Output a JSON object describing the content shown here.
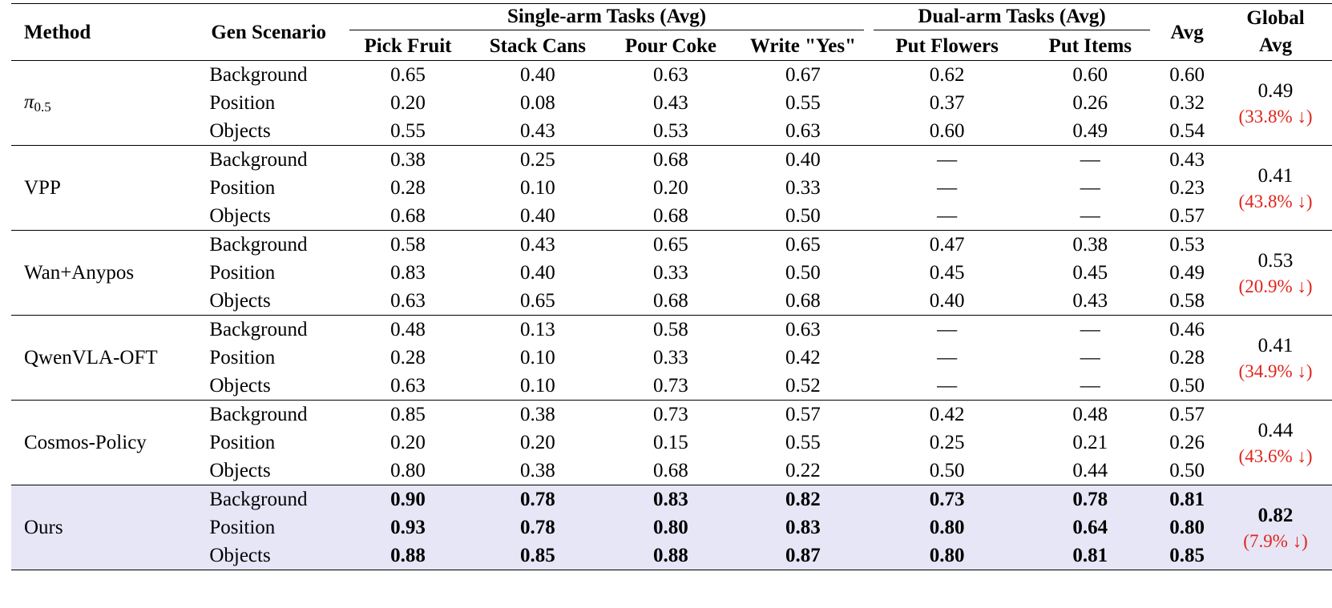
{
  "header": {
    "method": "Method",
    "gen_scenario": "Gen Scenario",
    "single_group": "Single-arm Tasks (Avg)",
    "dual_group": "Dual-arm Tasks (Avg)",
    "avg": "Avg",
    "global_avg_line1": "Global",
    "global_avg_line2": "Avg",
    "tasks": [
      "Pick Fruit",
      "Stack Cans",
      "Pour Coke",
      "Write \"Yes\"",
      "Put Flowers",
      "Put Items"
    ]
  },
  "methods": [
    {
      "name": "π",
      "name_sub": "0.5",
      "global_avg": "0.49",
      "global_drop": "(33.8% ↓)",
      "rows": [
        {
          "scenario": "Background",
          "values": [
            "0.65",
            "0.40",
            "0.63",
            "0.67",
            "0.62",
            "0.60"
          ],
          "avg": "0.60"
        },
        {
          "scenario": "Position",
          "values": [
            "0.20",
            "0.08",
            "0.43",
            "0.55",
            "0.37",
            "0.26"
          ],
          "avg": "0.32"
        },
        {
          "scenario": "Objects",
          "values": [
            "0.55",
            "0.43",
            "0.53",
            "0.63",
            "0.60",
            "0.49"
          ],
          "avg": "0.54"
        }
      ]
    },
    {
      "name": "VPP",
      "name_sub": "",
      "global_avg": "0.41",
      "global_drop": "(43.8% ↓)",
      "rows": [
        {
          "scenario": "Background",
          "values": [
            "0.38",
            "0.25",
            "0.68",
            "0.40",
            "—",
            "—"
          ],
          "avg": "0.43"
        },
        {
          "scenario": "Position",
          "values": [
            "0.28",
            "0.10",
            "0.20",
            "0.33",
            "—",
            "—"
          ],
          "avg": "0.23"
        },
        {
          "scenario": "Objects",
          "values": [
            "0.68",
            "0.40",
            "0.68",
            "0.50",
            "—",
            "—"
          ],
          "avg": "0.57"
        }
      ]
    },
    {
      "name": "Wan+Anypos",
      "name_sub": "",
      "global_avg": "0.53",
      "global_drop": "(20.9% ↓)",
      "rows": [
        {
          "scenario": "Background",
          "values": [
            "0.58",
            "0.43",
            "0.65",
            "0.65",
            "0.47",
            "0.38"
          ],
          "avg": "0.53"
        },
        {
          "scenario": "Position",
          "values": [
            "0.83",
            "0.40",
            "0.33",
            "0.50",
            "0.45",
            "0.45"
          ],
          "avg": "0.49"
        },
        {
          "scenario": "Objects",
          "values": [
            "0.63",
            "0.65",
            "0.68",
            "0.68",
            "0.40",
            "0.43"
          ],
          "avg": "0.58"
        }
      ]
    },
    {
      "name": "QwenVLA-OFT",
      "name_sub": "",
      "global_avg": "0.41",
      "global_drop": "(34.9% ↓)",
      "rows": [
        {
          "scenario": "Background",
          "values": [
            "0.48",
            "0.13",
            "0.58",
            "0.63",
            "—",
            "—"
          ],
          "avg": "0.46"
        },
        {
          "scenario": "Position",
          "values": [
            "0.28",
            "0.10",
            "0.33",
            "0.42",
            "—",
            "—"
          ],
          "avg": "0.28"
        },
        {
          "scenario": "Objects",
          "values": [
            "0.63",
            "0.10",
            "0.73",
            "0.52",
            "—",
            "—"
          ],
          "avg": "0.50"
        }
      ]
    },
    {
      "name": "Cosmos-Policy",
      "name_sub": "",
      "global_avg": "0.44",
      "global_drop": "(43.6% ↓)",
      "rows": [
        {
          "scenario": "Background",
          "values": [
            "0.85",
            "0.38",
            "0.73",
            "0.57",
            "0.42",
            "0.48"
          ],
          "avg": "0.57"
        },
        {
          "scenario": "Position",
          "values": [
            "0.20",
            "0.20",
            "0.15",
            "0.55",
            "0.25",
            "0.21"
          ],
          "avg": "0.26"
        },
        {
          "scenario": "Objects",
          "values": [
            "0.80",
            "0.38",
            "0.68",
            "0.22",
            "0.50",
            "0.44"
          ],
          "avg": "0.50"
        }
      ]
    },
    {
      "name": "Ours",
      "name_sub": "",
      "highlight": true,
      "global_avg": "0.82",
      "global_drop": "(7.9% ↓)",
      "rows": [
        {
          "scenario": "Background",
          "values": [
            "0.90",
            "0.78",
            "0.83",
            "0.82",
            "0.73",
            "0.78"
          ],
          "avg": "0.81"
        },
        {
          "scenario": "Position",
          "values": [
            "0.93",
            "0.78",
            "0.80",
            "0.83",
            "0.80",
            "0.64"
          ],
          "avg": "0.80"
        },
        {
          "scenario": "Objects",
          "values": [
            "0.88",
            "0.85",
            "0.88",
            "0.87",
            "0.80",
            "0.81"
          ],
          "avg": "0.85"
        }
      ]
    }
  ],
  "colors": {
    "highlight_row": "#e6e6f7",
    "drop_text": "#e0241c"
  }
}
